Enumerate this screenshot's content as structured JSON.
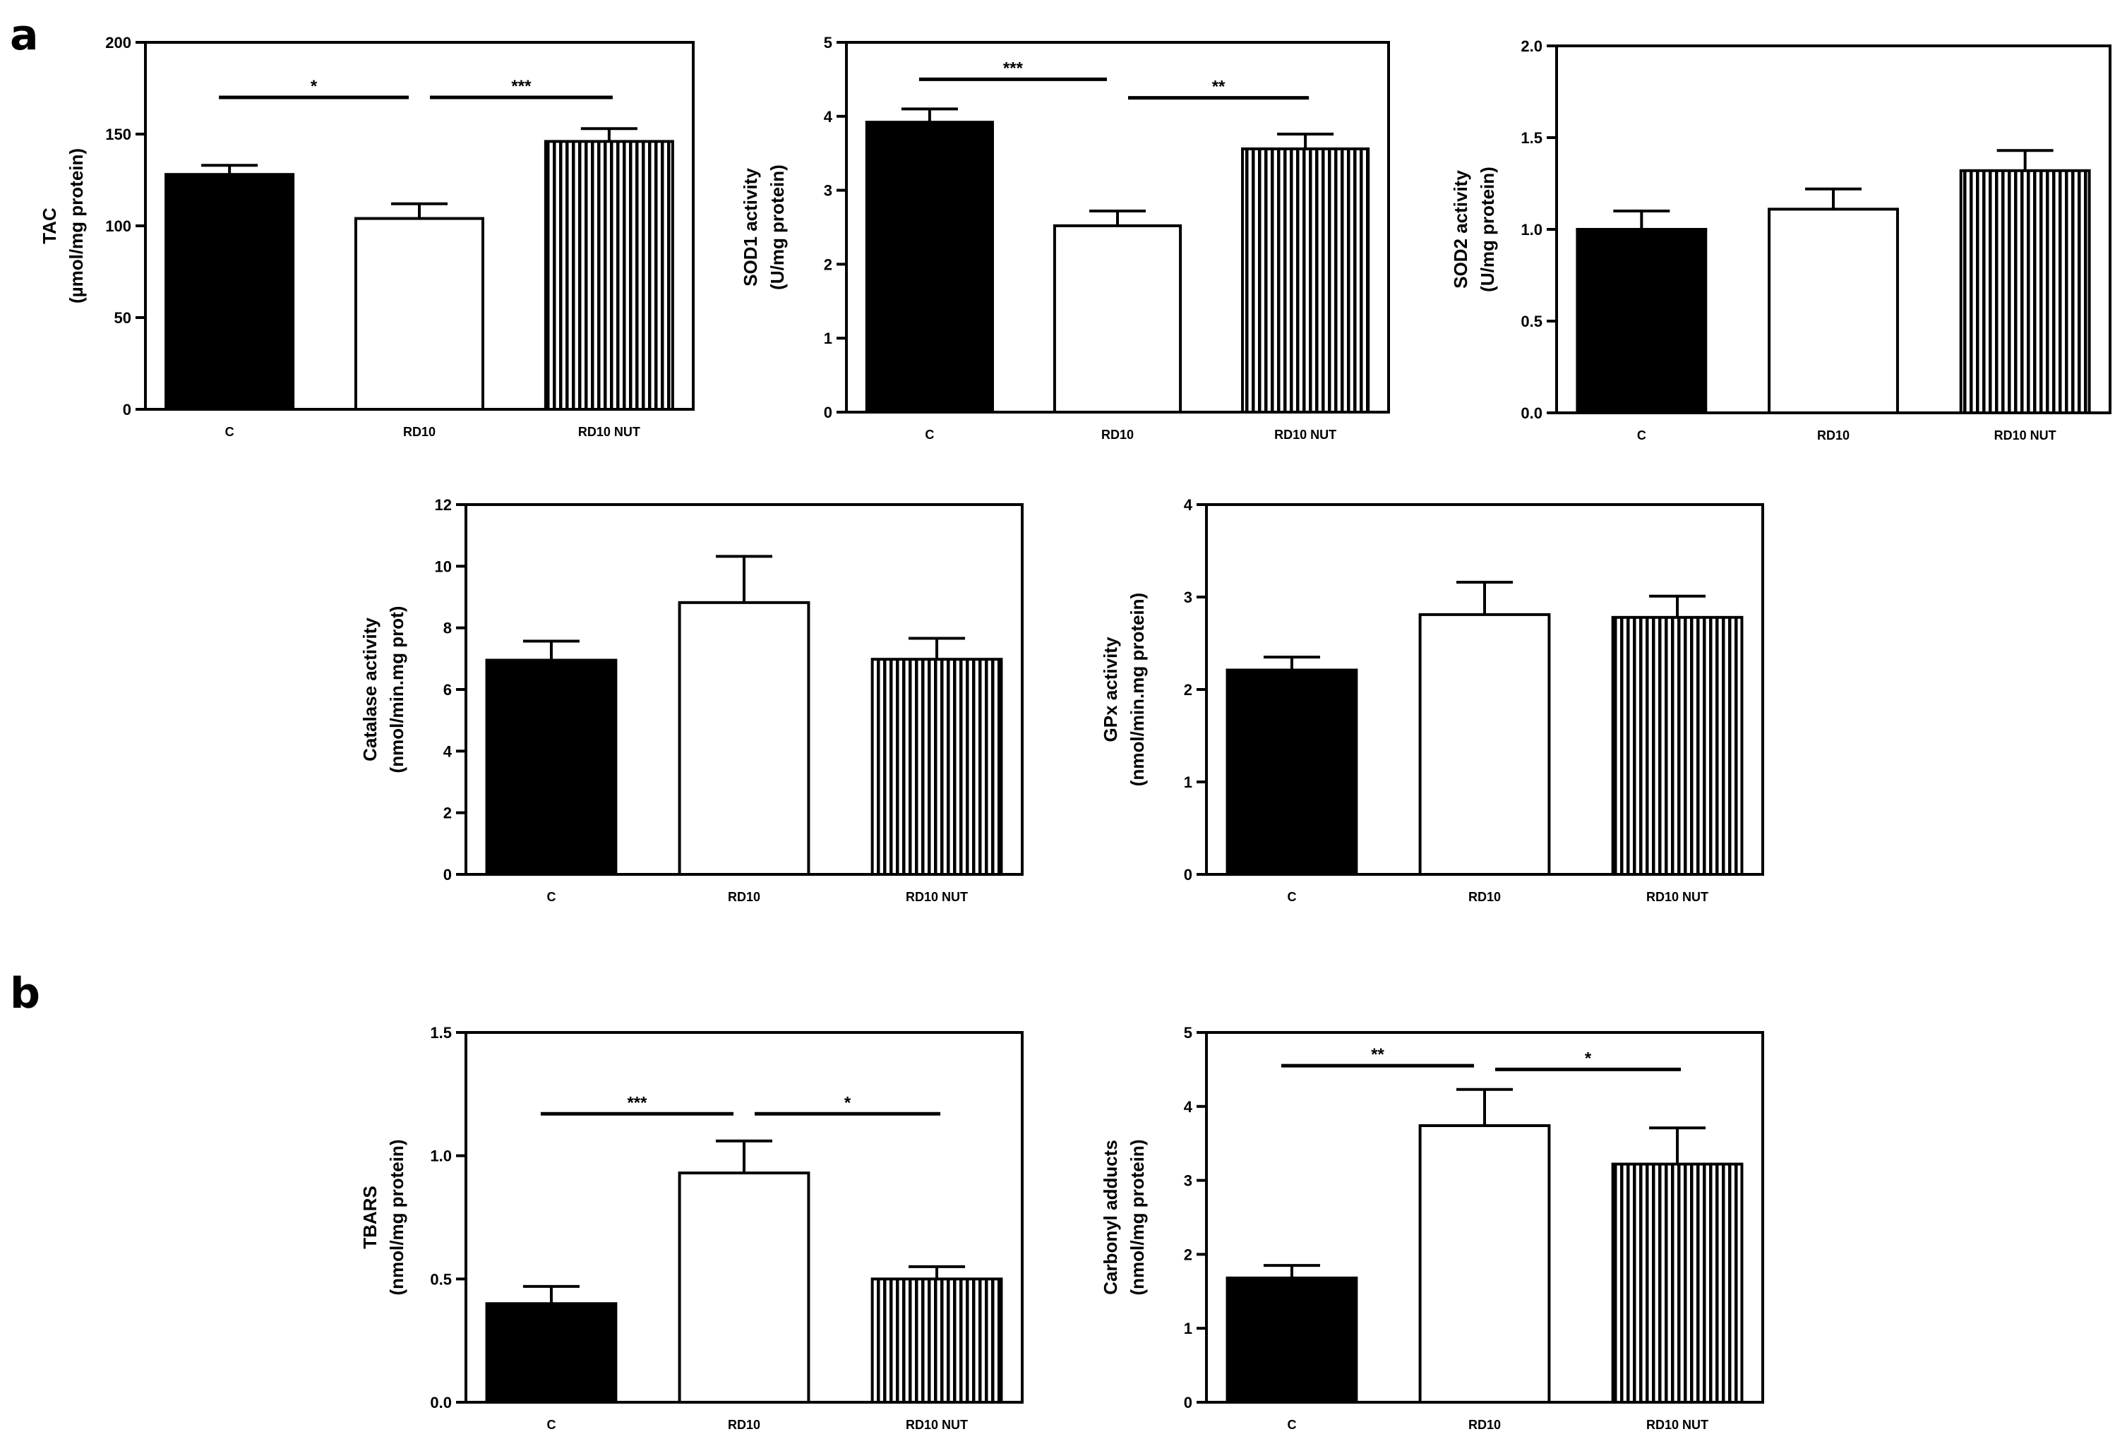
{
  "panels": [
    {
      "letter": "a"
    },
    {
      "letter": "b"
    }
  ],
  "chart_data": [
    {
      "type": "bar",
      "panel": "a",
      "title": "",
      "ylabel_lines": [
        "TAC",
        "(µmol/mg protein)"
      ],
      "xlabel": "",
      "categories": [
        "C",
        "RD10",
        "RD10 NUT"
      ],
      "values": [
        128,
        104,
        146
      ],
      "errors": [
        5,
        8,
        7
      ],
      "ylim": [
        0,
        200
      ],
      "yticks": [
        0,
        50,
        100,
        150,
        200
      ],
      "ytick_labels": [
        "0",
        "50",
        "100",
        "150",
        "200"
      ],
      "significance": [
        {
          "from": 0,
          "to": 1,
          "y": 170,
          "label": "*"
        },
        {
          "from": 1,
          "to": 2,
          "y": 170,
          "label": "***"
        }
      ]
    },
    {
      "type": "bar",
      "panel": "a",
      "title": "",
      "ylabel_lines": [
        "SOD1 activity",
        "(U/mg protein)"
      ],
      "xlabel": "",
      "categories": [
        "C",
        "RD10",
        "RD10 NUT"
      ],
      "values": [
        3.92,
        2.52,
        3.56
      ],
      "errors": [
        0.18,
        0.2,
        0.2
      ],
      "ylim": [
        0,
        5
      ],
      "yticks": [
        0,
        1,
        2,
        3,
        4,
        5
      ],
      "ytick_labels": [
        "0",
        "1",
        "2",
        "3",
        "4",
        "5"
      ],
      "significance": [
        {
          "from": 0,
          "to": 1,
          "y": 4.5,
          "label": "***"
        },
        {
          "from": 1,
          "to": 2,
          "y": 4.25,
          "label": "**"
        }
      ]
    },
    {
      "type": "bar",
      "panel": "a",
      "title": "",
      "ylabel_lines": [
        "SOD2 activity",
        "(U/mg protein)"
      ],
      "xlabel": "",
      "categories": [
        "C",
        "RD10",
        "RD10 NUT"
      ],
      "values": [
        1.0,
        1.11,
        1.32
      ],
      "errors": [
        0.1,
        0.11,
        0.11
      ],
      "ylim": [
        0,
        2
      ],
      "yticks": [
        0,
        0.5,
        1,
        1.5,
        2
      ],
      "ytick_labels": [
        "0.0",
        "0.5",
        "1.0",
        "1.5",
        "2.0"
      ],
      "significance": []
    },
    {
      "type": "bar",
      "panel": "a",
      "title": "",
      "ylabel_lines": [
        "Catalase activity",
        "(nmol/min.mg prot)"
      ],
      "xlabel": "",
      "categories": [
        "C",
        "RD10",
        "RD10 NUT"
      ],
      "values": [
        6.95,
        8.82,
        6.98
      ],
      "errors": [
        0.62,
        1.5,
        0.68
      ],
      "ylim": [
        0,
        12
      ],
      "yticks": [
        0,
        2,
        4,
        6,
        8,
        10,
        12
      ],
      "ytick_labels": [
        "0",
        "2",
        "4",
        "6",
        "8",
        "10",
        "12"
      ],
      "significance": []
    },
    {
      "type": "bar",
      "panel": "a",
      "title": "",
      "ylabel_lines": [
        "GPx activity",
        "(nmol/min.mg protein)"
      ],
      "xlabel": "",
      "categories": [
        "C",
        "RD10",
        "RD10 NUT"
      ],
      "values": [
        2.21,
        2.81,
        2.78
      ],
      "errors": [
        0.14,
        0.35,
        0.23
      ],
      "ylim": [
        0,
        4
      ],
      "yticks": [
        0,
        1,
        2,
        3,
        4
      ],
      "ytick_labels": [
        "0",
        "1",
        "2",
        "3",
        "4"
      ],
      "significance": []
    },
    {
      "type": "bar",
      "panel": "b",
      "title": "",
      "ylabel_lines": [
        "TBARS",
        "(nmol/mg protein)"
      ],
      "xlabel": "",
      "categories": [
        "C",
        "RD10",
        "RD10 NUT"
      ],
      "values": [
        0.4,
        0.93,
        0.5
      ],
      "errors": [
        0.07,
        0.13,
        0.05
      ],
      "ylim": [
        0,
        1.5
      ],
      "yticks": [
        0,
        0.5,
        1,
        1.5
      ],
      "ytick_labels": [
        "0.0",
        "0.5",
        "1.0",
        "1.5"
      ],
      "significance": [
        {
          "from": 0,
          "to": 1,
          "y": 1.17,
          "label": "***"
        },
        {
          "from": 1,
          "to": 2,
          "y": 1.17,
          "label": "*"
        }
      ]
    },
    {
      "type": "bar",
      "panel": "b",
      "title": "",
      "ylabel_lines": [
        "Carbonyl adducts",
        "(nmol/mg protein)"
      ],
      "xlabel": "",
      "categories": [
        "C",
        "RD10",
        "RD10 NUT"
      ],
      "values": [
        1.68,
        3.74,
        3.22
      ],
      "errors": [
        0.17,
        0.49,
        0.49
      ],
      "ylim": [
        0,
        5
      ],
      "yticks": [
        0,
        1,
        2,
        3,
        4,
        5
      ],
      "ytick_labels": [
        "0",
        "1",
        "2",
        "3",
        "4",
        "5"
      ],
      "significance": [
        {
          "from": 0,
          "to": 1,
          "y": 4.55,
          "label": "**"
        },
        {
          "from": 1,
          "to": 2,
          "y": 4.5,
          "label": "*"
        }
      ]
    }
  ]
}
